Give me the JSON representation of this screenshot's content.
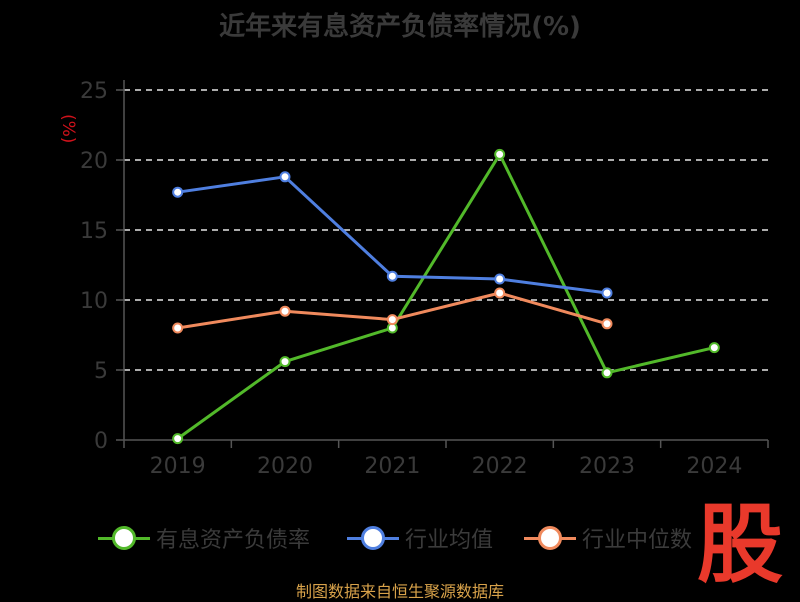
{
  "chart_data": {
    "type": "line",
    "title": "近年来有息资产负债率情况(%)",
    "y_unit": "(%)",
    "categories": [
      "2019",
      "2020",
      "2021",
      "2022",
      "2023",
      "2024"
    ],
    "ylim": [
      0,
      25
    ],
    "yticks": [
      "0",
      "5",
      "10",
      "15",
      "20",
      "25"
    ],
    "grid": true,
    "legend_position": "bottom",
    "series": [
      {
        "name": "有息资产负债率",
        "color": "#52b92a",
        "values": [
          0.1,
          5.6,
          8.0,
          20.4,
          4.8,
          6.6
        ]
      },
      {
        "name": "行业均值",
        "color": "#4f7fe0",
        "values": [
          17.7,
          18.8,
          11.7,
          11.5,
          10.5,
          null
        ]
      },
      {
        "name": "行业中位数",
        "color": "#f08a5d",
        "values": [
          8.0,
          9.2,
          8.6,
          10.5,
          8.3,
          null
        ]
      }
    ]
  },
  "source_text": "制图数据来自恒生聚源数据库",
  "watermark": "股"
}
